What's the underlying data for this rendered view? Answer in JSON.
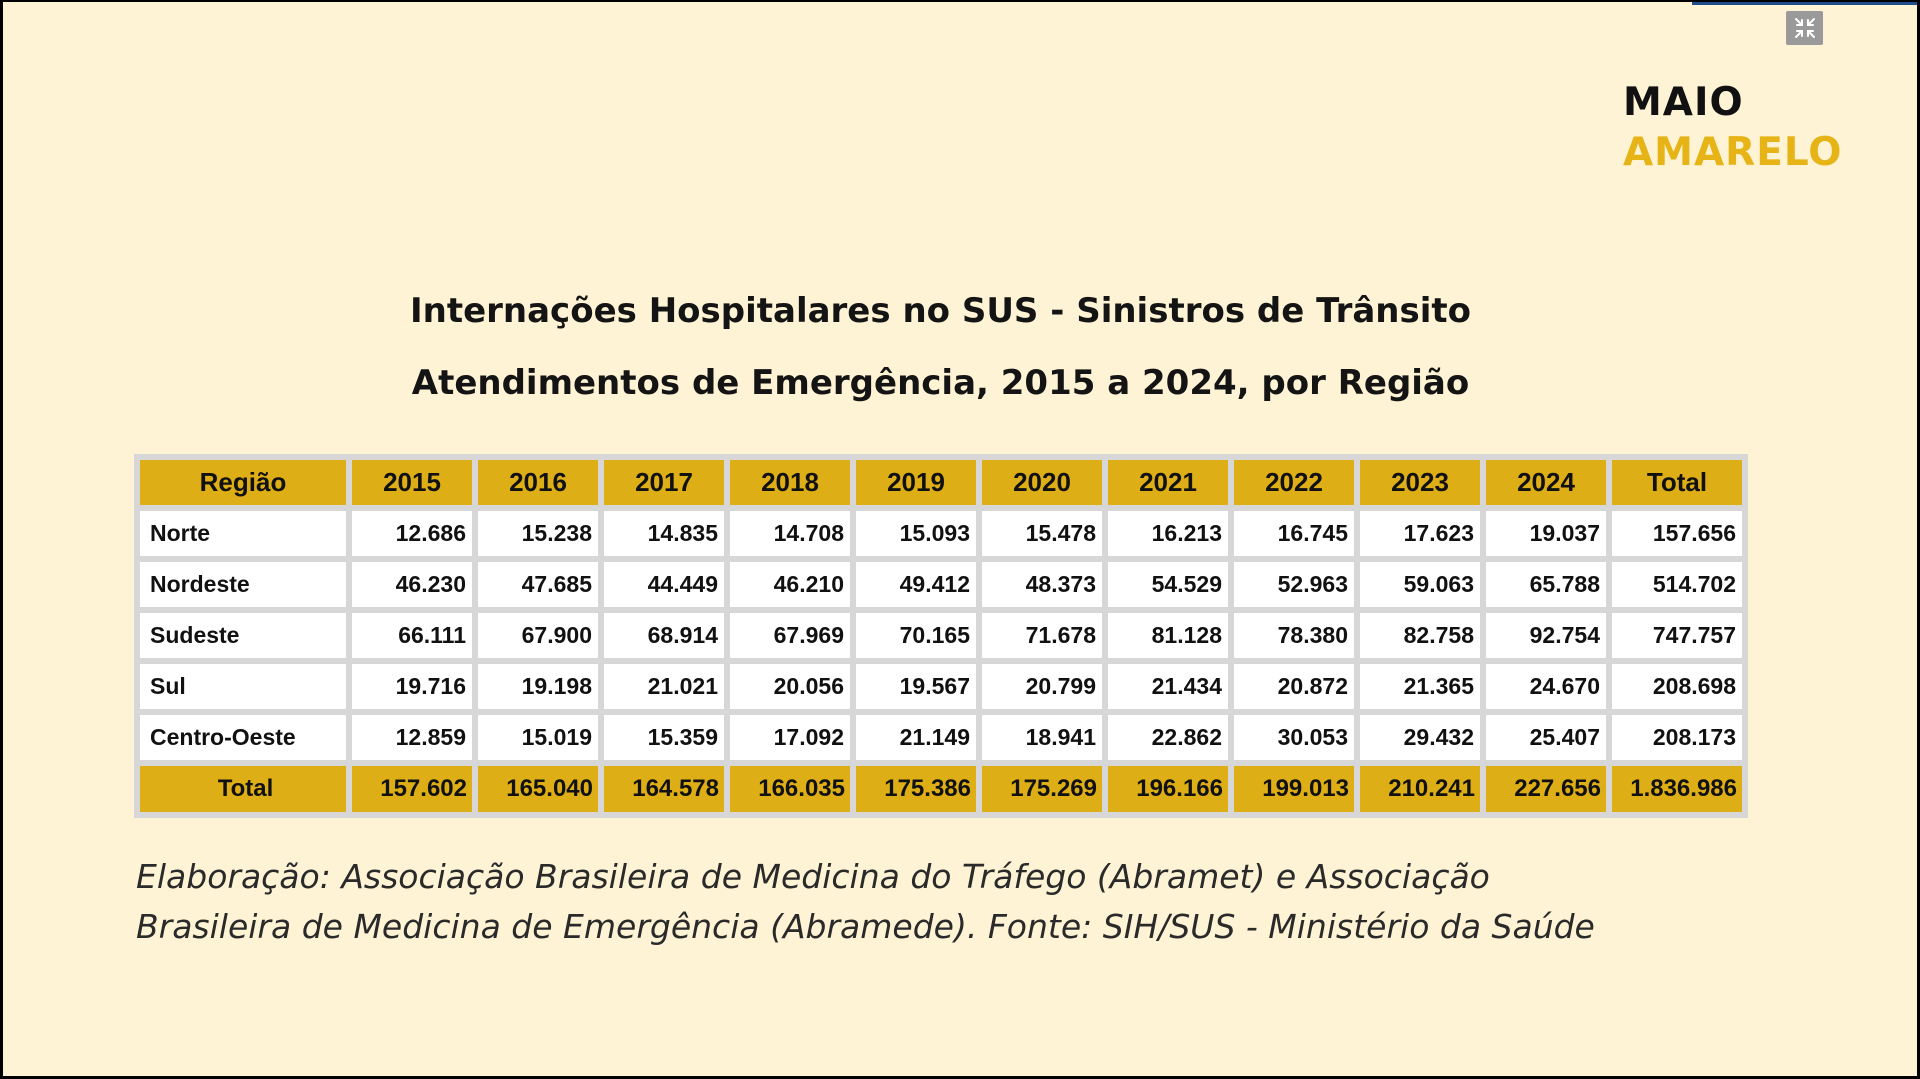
{
  "logo": {
    "line1": "MAIO",
    "line2": "AMARELO"
  },
  "title": "Internações Hospitalares no SUS - Sinistros de Trânsito",
  "subtitle": "Atendimentos de Emergência, 2015 a 2024, por Região",
  "table": {
    "headers": [
      "Região",
      "2015",
      "2016",
      "2017",
      "2018",
      "2019",
      "2020",
      "2021",
      "2022",
      "2023",
      "2024",
      "Total"
    ],
    "rows": [
      [
        "Norte",
        "12.686",
        "15.238",
        "14.835",
        "14.708",
        "15.093",
        "15.478",
        "16.213",
        "16.745",
        "17.623",
        "19.037",
        "157.656"
      ],
      [
        "Nordeste",
        "46.230",
        "47.685",
        "44.449",
        "46.210",
        "49.412",
        "48.373",
        "54.529",
        "52.963",
        "59.063",
        "65.788",
        "514.702"
      ],
      [
        "Sudeste",
        "66.111",
        "67.900",
        "68.914",
        "67.969",
        "70.165",
        "71.678",
        "81.128",
        "78.380",
        "82.758",
        "92.754",
        "747.757"
      ],
      [
        "Sul",
        "19.716",
        "19.198",
        "21.021",
        "20.056",
        "19.567",
        "20.799",
        "21.434",
        "20.872",
        "21.365",
        "24.670",
        "208.698"
      ],
      [
        "Centro-Oeste",
        "12.859",
        "15.019",
        "15.359",
        "17.092",
        "21.149",
        "18.941",
        "22.862",
        "30.053",
        "29.432",
        "25.407",
        "208.173"
      ]
    ],
    "total_row": [
      "Total",
      "157.602",
      "165.040",
      "164.578",
      "166.035",
      "175.386",
      "175.269",
      "196.166",
      "199.013",
      "210.241",
      "227.656",
      "1.836.986"
    ]
  },
  "caption": {
    "line1": "Elaboração: Associação Brasileira de Medicina do Tráfego (Abramet) e Associação",
    "line2": "Brasileira de Medicina de Emergência (Abramede). Fonte: SIH/SUS - Ministério da Saúde"
  },
  "controls": {
    "exit_fullscreen_icon": "collapse-arrows-icon"
  },
  "colors": {
    "background": "#FEF3D4",
    "accent": "#DEAE17",
    "logo_yellow": "#E6B417",
    "table_border": "#D7D7D7"
  }
}
